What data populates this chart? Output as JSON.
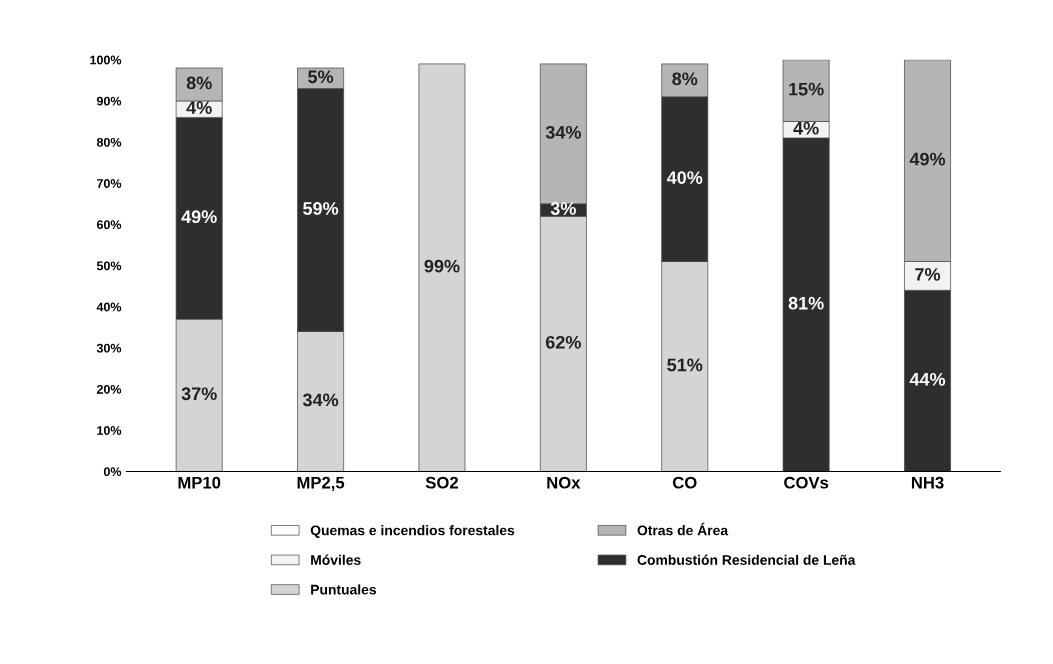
{
  "chart_data": {
    "type": "bar",
    "stacked": true,
    "categories": [
      "MP10",
      "MP2,5",
      "SO2",
      "NOx",
      "CO",
      "COVs",
      "NH3"
    ],
    "series": [
      {
        "name": "Puntuales",
        "color": "#d4d4d4",
        "values": [
          37,
          34,
          99,
          62,
          51,
          null,
          null
        ],
        "value_labels": [
          "37%",
          "34%",
          "99%",
          "62%",
          "51%",
          null,
          null
        ]
      },
      {
        "name": "Combustión Residencial de Leña",
        "color": "#2e2e2e",
        "values": [
          49,
          59,
          null,
          3,
          40,
          81,
          44
        ],
        "value_labels": [
          "49%",
          "59%",
          null,
          "3%",
          "40%",
          "81%",
          "44%"
        ]
      },
      {
        "name": "Móviles",
        "color": "#f2f2f2",
        "values": [
          4,
          null,
          null,
          null,
          null,
          4,
          7
        ],
        "value_labels": [
          "4%",
          null,
          null,
          null,
          null,
          "4%",
          "7%"
        ]
      },
      {
        "name": "Otras de Área",
        "color": "#b5b5b5",
        "values": [
          8,
          5,
          null,
          34,
          8,
          15,
          49
        ],
        "value_labels": [
          "8%",
          "5%",
          null,
          "34%",
          "8%",
          "15%",
          "49%"
        ]
      },
      {
        "name": "Quemas e incendios forestales",
        "color": "#ffffff",
        "values": [
          null,
          null,
          null,
          null,
          null,
          null,
          null
        ],
        "value_labels": [
          null,
          null,
          null,
          null,
          null,
          null,
          null
        ]
      }
    ],
    "ylim": [
      0,
      100
    ],
    "yticks": [
      {
        "value": 0,
        "label": "0%"
      },
      {
        "value": 10,
        "label": "10%"
      },
      {
        "value": 20,
        "label": "20%"
      },
      {
        "value": 30,
        "label": "30%"
      },
      {
        "value": 40,
        "label": "40%"
      },
      {
        "value": 50,
        "label": "50%"
      },
      {
        "value": 60,
        "label": "60%"
      },
      {
        "value": 70,
        "label": "70%"
      },
      {
        "value": 80,
        "label": "80%"
      },
      {
        "value": 90,
        "label": "90%"
      },
      {
        "value": 100,
        "label": "100%"
      }
    ],
    "grid": false,
    "legend": "bottom"
  }
}
